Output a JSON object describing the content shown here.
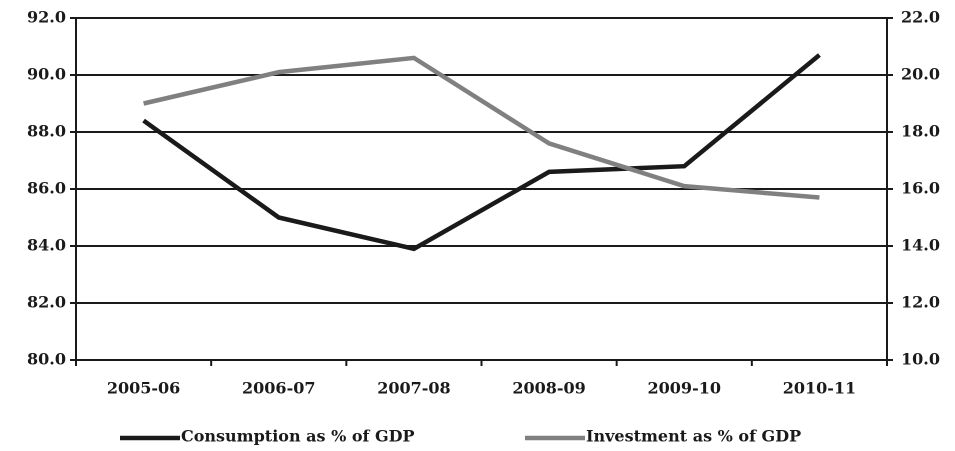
{
  "chart_data": {
    "type": "line",
    "categories": [
      "2005-06",
      "2006-07",
      "2007-08",
      "2008-09",
      "2009-10",
      "2010-11"
    ],
    "series": [
      {
        "name": "Consumption as % of GDP",
        "color": "#1a1a1a",
        "values": [
          88.4,
          85.0,
          83.9,
          86.6,
          86.8,
          90.7
        ]
      },
      {
        "name": "Investment as % of GDP",
        "color": "#808080",
        "axis": "y2",
        "values": [
          19.0,
          20.1,
          20.6,
          17.6,
          16.1,
          15.7
        ]
      }
    ],
    "ylim": [
      80,
      92
    ],
    "yticks": [
      {
        "value": 80,
        "label": "80.0"
      },
      {
        "value": 82,
        "label": "82.0"
      },
      {
        "value": 84,
        "label": "84.0"
      },
      {
        "value": 86,
        "label": "86.0"
      },
      {
        "value": 88,
        "label": "88.0"
      },
      {
        "value": 90,
        "label": "90.0"
      },
      {
        "value": 92,
        "label": "92.0"
      }
    ],
    "y2lim": [
      10,
      22
    ],
    "y2ticks": [
      {
        "value": 10,
        "label": "10.0"
      },
      {
        "value": 12,
        "label": "12.0"
      },
      {
        "value": 14,
        "label": "14.0"
      },
      {
        "value": 16,
        "label": "16.0"
      },
      {
        "value": 18,
        "label": "18.0"
      },
      {
        "value": 20,
        "label": "20.0"
      },
      {
        "value": 22,
        "label": "22.0"
      }
    ],
    "grid": true,
    "legend": "bottom"
  }
}
